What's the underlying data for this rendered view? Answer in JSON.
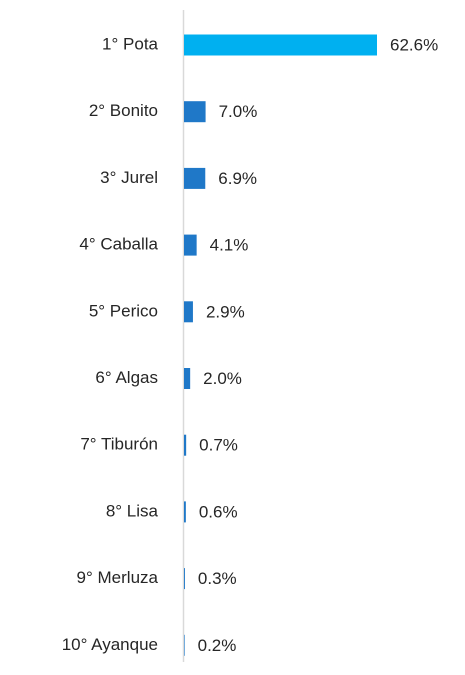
{
  "chart_data": {
    "type": "bar",
    "orientation": "horizontal",
    "categories": [
      "1° Pota",
      "2° Bonito",
      "3° Jurel",
      "4° Caballa",
      "5° Perico",
      "6° Algas",
      "7° Tiburón",
      "8° Lisa",
      "9° Merluza",
      "10° Ayanque"
    ],
    "values": [
      62.6,
      7.0,
      6.9,
      4.1,
      2.9,
      2.0,
      0.7,
      0.6,
      0.3,
      0.2
    ],
    "value_labels": [
      "62.6%",
      "7.0%",
      "6.9%",
      "4.1%",
      "2.9%",
      "2.0%",
      "0.7%",
      "0.6%",
      "0.3%",
      "0.2%"
    ],
    "colors": [
      "#00b0f0",
      "#1f78c8",
      "#1f78c8",
      "#1f78c8",
      "#1f78c8",
      "#1f78c8",
      "#1f78c8",
      "#1f78c8",
      "#1f78c8",
      "#1f78c8"
    ]
  }
}
